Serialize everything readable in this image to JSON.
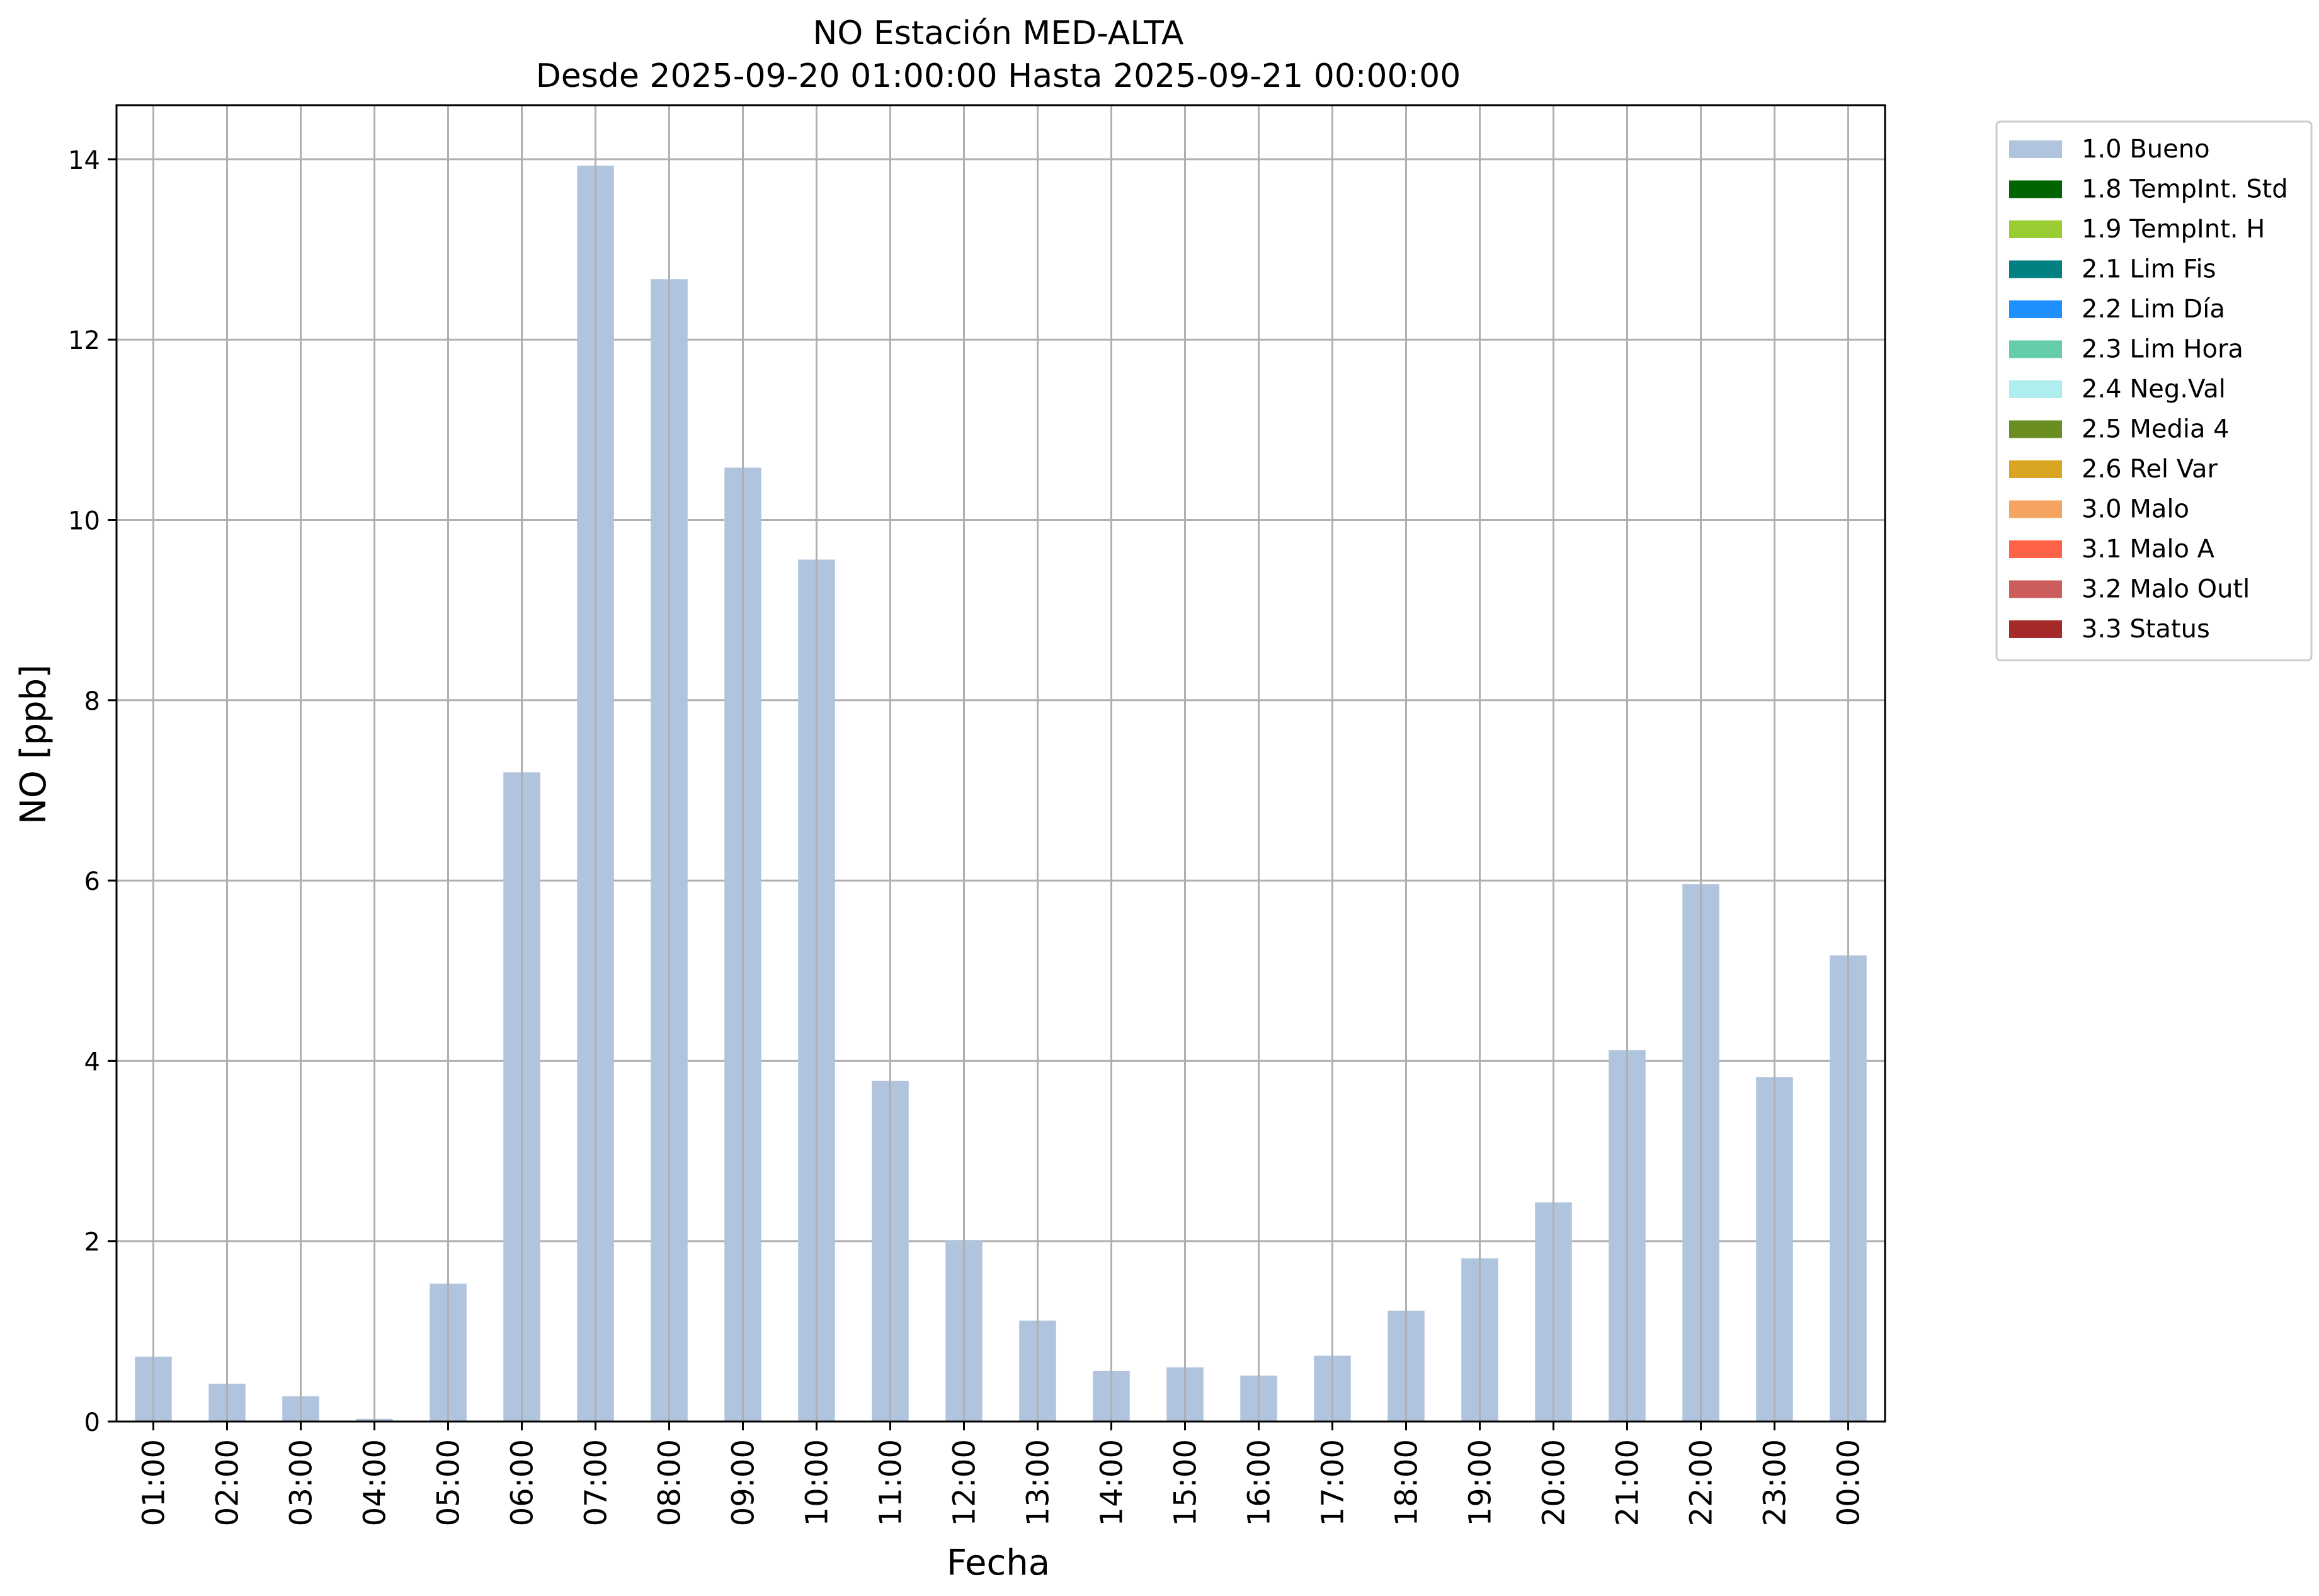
{
  "chart_data": {
    "type": "bar",
    "title": "NO Estación MED-ALTA",
    "subtitle": "Desde 2025-09-20 01:00:00 Hasta 2025-09-21 00:00:00",
    "xlabel": "Fecha",
    "ylabel": "NO [ppb]",
    "ylim": [
      0,
      14.6
    ],
    "yticks": [
      0,
      2,
      4,
      6,
      8,
      10,
      12,
      14
    ],
    "grid": true,
    "legend_position": "outside-top-right",
    "bar_color": "#b0c4de",
    "categories": [
      "01:00",
      "02:00",
      "03:00",
      "04:00",
      "05:00",
      "06:00",
      "07:00",
      "08:00",
      "09:00",
      "10:00",
      "11:00",
      "12:00",
      "13:00",
      "14:00",
      "15:00",
      "16:00",
      "17:00",
      "18:00",
      "19:00",
      "20:00",
      "21:00",
      "22:00",
      "23:00",
      "00:00"
    ],
    "series": [
      {
        "name": "1.0 Bueno",
        "color": "#b0c4de",
        "values": [
          0.72,
          0.42,
          0.28,
          0.03,
          1.53,
          7.2,
          13.93,
          12.67,
          10.58,
          9.56,
          3.78,
          2.01,
          1.12,
          0.56,
          0.6,
          0.51,
          0.73,
          1.23,
          1.81,
          2.43,
          4.12,
          5.96,
          3.82,
          5.17
        ]
      }
    ],
    "legend": [
      {
        "label": "1.0 Bueno",
        "color": "#b0c4de"
      },
      {
        "label": "1.8 TempInt. Std",
        "color": "#006400"
      },
      {
        "label": "1.9 TempInt. H",
        "color": "#9acd32"
      },
      {
        "label": "2.1 Lim Fis",
        "color": "#008080"
      },
      {
        "label": "2.2 Lim Día",
        "color": "#1e90ff"
      },
      {
        "label": "2.3 Lim Hora",
        "color": "#66cdaa"
      },
      {
        "label": "2.4 Neg.Val",
        "color": "#afeeee"
      },
      {
        "label": "2.5 Media 4",
        "color": "#6b8e23"
      },
      {
        "label": "2.6 Rel Var",
        "color": "#daa520"
      },
      {
        "label": "3.0 Malo",
        "color": "#f4a460"
      },
      {
        "label": "3.1 Malo A",
        "color": "#ff6347"
      },
      {
        "label": "3.2 Malo Outl",
        "color": "#cd5c5c"
      },
      {
        "label": "3.3 Status",
        "color": "#a52a2a"
      }
    ]
  }
}
